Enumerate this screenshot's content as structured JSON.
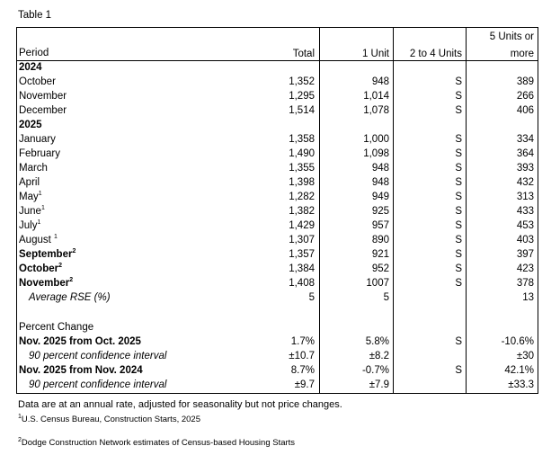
{
  "title": "Table 1",
  "table": {
    "headers": {
      "period": "Period",
      "columns": [
        "Total",
        "1 Unit",
        "2 to 4 Units",
        "5 Units or more"
      ]
    },
    "rows": [
      {
        "period": "2024",
        "bold": true
      },
      {
        "period": "October",
        "values": [
          "1,352",
          "948",
          "S",
          "389"
        ]
      },
      {
        "period": "November",
        "values": [
          "1,295",
          "1,014",
          "S",
          "266"
        ]
      },
      {
        "period": "December",
        "values": [
          "1,514",
          "1,078",
          "S",
          "406"
        ]
      },
      {
        "period": "2025",
        "bold": true
      },
      {
        "period": "January",
        "values": [
          "1,358",
          "1,000",
          "S",
          "334"
        ]
      },
      {
        "period": "February",
        "values": [
          "1,490",
          "1,098",
          "S",
          "364"
        ]
      },
      {
        "period": "March",
        "values": [
          "1,355",
          "948",
          "S",
          "393"
        ]
      },
      {
        "period": "April",
        "values": [
          "1,398",
          "948",
          "S",
          "432"
        ]
      },
      {
        "period": "May",
        "sup": "1",
        "values": [
          "1,282",
          "949",
          "S",
          "313"
        ]
      },
      {
        "period": "June",
        "sup": "1",
        "values": [
          "1,382",
          "925",
          "S",
          "433"
        ]
      },
      {
        "period": "July",
        "sup": "1",
        "values": [
          "1,429",
          "957",
          "S",
          "453"
        ]
      },
      {
        "period": "August ",
        "sup": "1",
        "values": [
          "1,307",
          "890",
          "S",
          "403"
        ]
      },
      {
        "period": "September",
        "sup": "2",
        "bold": true,
        "values": [
          "1,357",
          "921",
          "S",
          "397"
        ]
      },
      {
        "period": "October",
        "sup": "2",
        "bold": true,
        "values": [
          "1,384",
          "952",
          "S",
          "423"
        ]
      },
      {
        "period": "November",
        "sup": "2",
        "bold": true,
        "values": [
          "1,408",
          "1007",
          "S",
          "378"
        ]
      },
      {
        "period": "Average RSE (%)",
        "italic": true,
        "values": [
          "5",
          "5",
          "",
          "13"
        ]
      }
    ],
    "change_rows": [
      {
        "period": "Percent Change"
      },
      {
        "period": "Nov. 2025 from Oct. 2025",
        "bold": true,
        "values": [
          "1.7%",
          "5.8%",
          "S",
          "-10.6%"
        ]
      },
      {
        "period": "90 percent confidence interval",
        "italic": true,
        "values": [
          "±10.7",
          "±8.2",
          "",
          "±30"
        ]
      },
      {
        "period": "Nov. 2025 from Nov. 2024",
        "bold": true,
        "values": [
          "8.7%",
          "-0.7%",
          "S",
          "42.1%"
        ]
      },
      {
        "period": "90 percent confidence interval",
        "italic": true,
        "values": [
          "±9.7",
          "±7.9",
          "",
          "±33.3"
        ]
      }
    ]
  },
  "note": "Data are at an annual rate, adjusted for seasonality but not price changes.",
  "footnotes": [
    {
      "mark": "1",
      "text": "U.S. Census Bureau, Construction Starts, 2025"
    },
    {
      "mark": "2",
      "text": "Dodge Construction Network estimates of Census-based Housing Starts"
    }
  ]
}
